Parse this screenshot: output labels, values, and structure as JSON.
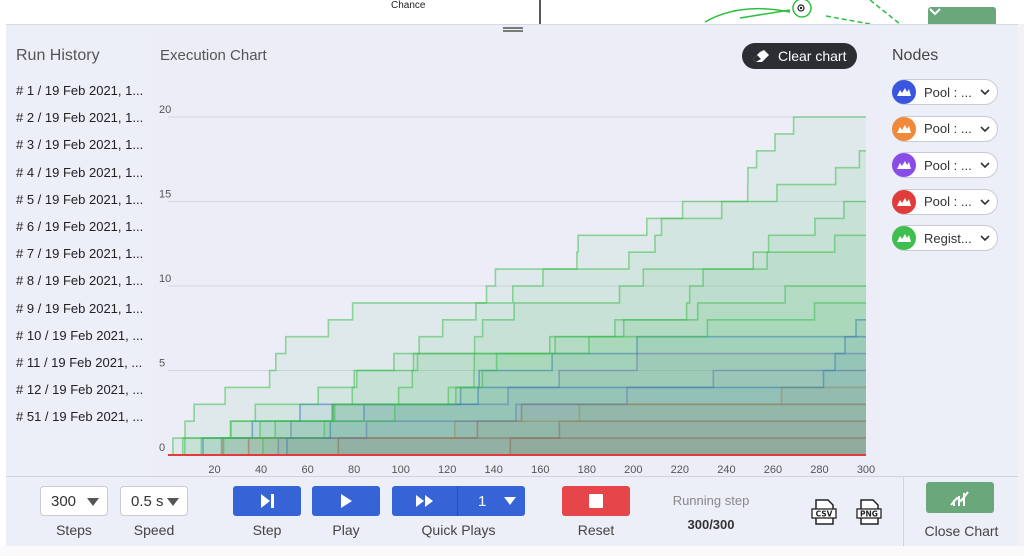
{
  "canvas": {
    "chance_label": "Chance"
  },
  "run_history": {
    "title": "Run History",
    "items": [
      "# 1 / 19 Feb 2021, 1...",
      "# 2 / 19 Feb 2021, 1...",
      "# 3 / 19 Feb 2021, 1...",
      "# 4 / 19 Feb 2021, 1...",
      "# 5 / 19 Feb 2021, 1...",
      "# 6 / 19 Feb 2021, 1...",
      "# 7 / 19 Feb 2021, 1...",
      "# 8 / 19 Feb 2021, 1...",
      "# 9 / 19 Feb 2021, 1...",
      "# 10 / 19 Feb 2021, ...",
      "# 11 / 19 Feb 2021, ...",
      "# 12 / 19 Feb 2021, ...",
      "# 51 / 19 Feb 2021, ..."
    ]
  },
  "chart": {
    "title": "Execution Chart",
    "clear_label": "Clear chart"
  },
  "chart_data": {
    "type": "area",
    "x_ticks": [
      20,
      40,
      60,
      80,
      100,
      120,
      140,
      160,
      180,
      200,
      220,
      240,
      260,
      280,
      300
    ],
    "y_ticks": [
      0,
      5,
      10,
      15,
      20
    ],
    "xlim": [
      0,
      300
    ],
    "ylim": [
      0,
      20
    ],
    "grid": true,
    "series": [
      {
        "color": "#e23b3b",
        "final": 1
      },
      {
        "color": "#e23b3b",
        "final": 2
      },
      {
        "color": "#e23b3b",
        "final": 3
      },
      {
        "color": "#f08a3a",
        "final": 4
      },
      {
        "color": "#8a5ce6",
        "final": 5
      },
      {
        "color": "#8a5ce6",
        "final": 6
      },
      {
        "color": "#3a66e0",
        "final": 7
      },
      {
        "color": "#3a66e0",
        "final": 8
      },
      {
        "color": "#3fbf4f",
        "final": 9
      },
      {
        "color": "#3fbf4f",
        "final": 10
      },
      {
        "color": "#3fbf4f",
        "final": 13
      },
      {
        "color": "#3fbf4f",
        "final": 15
      },
      {
        "color": "#3fbf4f",
        "final": 18
      },
      {
        "color": "#3fbf4f",
        "final": 20
      }
    ]
  },
  "nodes": {
    "title": "Nodes",
    "items": [
      {
        "label": "Pool : ...",
        "color": "#3a55e0"
      },
      {
        "label": "Pool : ...",
        "color": "#f08a3a"
      },
      {
        "label": "Pool : ...",
        "color": "#8a4ce6"
      },
      {
        "label": "Pool : ...",
        "color": "#e23b3b"
      },
      {
        "label": "Regist...",
        "color": "#3fbf4f"
      }
    ]
  },
  "controls": {
    "steps_value": "300",
    "steps_label": "Steps",
    "speed_value": "0.5 s",
    "speed_label": "Speed",
    "step_label": "Step",
    "play_label": "Play",
    "quick_plays_value": "1",
    "quick_plays_label": "Quick Plays",
    "reset_label": "Reset",
    "running_step_label": "Running step",
    "running_step_value": "300/300",
    "close_chart_label": "Close Chart"
  },
  "colors": {
    "accent_blue": "#3663d6",
    "reset_red": "#e6454a",
    "close_green": "#6aa77a"
  }
}
